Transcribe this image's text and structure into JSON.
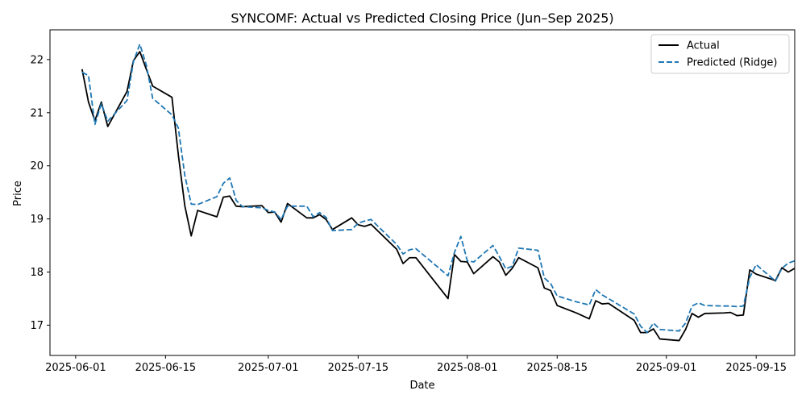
{
  "chart_data": {
    "type": "line",
    "title": "SYNCOMF: Actual vs Predicted Closing Price (Jun–Sep 2025)",
    "xlabel": "Date",
    "ylabel": "Price",
    "xlim": [
      "2025-05-28",
      "2025-09-21"
    ],
    "ylim": [
      16.43,
      22.56
    ],
    "x_ticks": [
      "2025-06-01",
      "2025-06-15",
      "2025-07-01",
      "2025-07-15",
      "2025-08-01",
      "2025-08-15",
      "2025-09-01",
      "2025-09-15"
    ],
    "y_ticks": [
      17,
      18,
      19,
      20,
      21,
      22
    ],
    "grid": false,
    "legend_position": "top-right",
    "series": [
      {
        "name": "Actual",
        "color": "#000000",
        "style": "solid",
        "points": [
          [
            "2025-06-02",
            21.82
          ],
          [
            "2025-06-03",
            21.2
          ],
          [
            "2025-06-04",
            20.85
          ],
          [
            "2025-06-05",
            21.2
          ],
          [
            "2025-06-06",
            20.74
          ],
          [
            "2025-06-09",
            21.4
          ],
          [
            "2025-06-10",
            21.98
          ],
          [
            "2025-06-11",
            22.15
          ],
          [
            "2025-06-12",
            21.82
          ],
          [
            "2025-06-13",
            21.5
          ],
          [
            "2025-06-16",
            21.29
          ],
          [
            "2025-06-17",
            20.2
          ],
          [
            "2025-06-18",
            19.25
          ],
          [
            "2025-06-19",
            18.68
          ],
          [
            "2025-06-20",
            19.16
          ],
          [
            "2025-06-23",
            19.04
          ],
          [
            "2025-06-24",
            19.41
          ],
          [
            "2025-06-25",
            19.43
          ],
          [
            "2025-06-26",
            19.24
          ],
          [
            "2025-06-27",
            19.23
          ],
          [
            "2025-06-30",
            19.25
          ],
          [
            "2025-07-01",
            19.12
          ],
          [
            "2025-07-02",
            19.13
          ],
          [
            "2025-07-03",
            18.94
          ],
          [
            "2025-07-04",
            19.29
          ],
          [
            "2025-07-07",
            19.02
          ],
          [
            "2025-07-08",
            19.02
          ],
          [
            "2025-07-09",
            19.08
          ],
          [
            "2025-07-10",
            18.99
          ],
          [
            "2025-07-11",
            18.8
          ],
          [
            "2025-07-14",
            19.02
          ],
          [
            "2025-07-15",
            18.89
          ],
          [
            "2025-07-16",
            18.86
          ],
          [
            "2025-07-17",
            18.9
          ],
          [
            "2025-07-21",
            18.43
          ],
          [
            "2025-07-22",
            18.16
          ],
          [
            "2025-07-23",
            18.27
          ],
          [
            "2025-07-24",
            18.27
          ],
          [
            "2025-07-29",
            17.5
          ],
          [
            "2025-07-30",
            18.33
          ],
          [
            "2025-07-31",
            18.2
          ],
          [
            "2025-08-01",
            18.19
          ],
          [
            "2025-08-02",
            17.97
          ],
          [
            "2025-08-05",
            18.29
          ],
          [
            "2025-08-06",
            18.19
          ],
          [
            "2025-08-07",
            17.94
          ],
          [
            "2025-08-08",
            18.07
          ],
          [
            "2025-08-09",
            18.27
          ],
          [
            "2025-08-12",
            18.08
          ],
          [
            "2025-08-13",
            17.7
          ],
          [
            "2025-08-14",
            17.65
          ],
          [
            "2025-08-15",
            17.37
          ],
          [
            "2025-08-18",
            17.23
          ],
          [
            "2025-08-20",
            17.12
          ],
          [
            "2025-08-21",
            17.46
          ],
          [
            "2025-08-22",
            17.4
          ],
          [
            "2025-08-23",
            17.41
          ],
          [
            "2025-08-27",
            17.09
          ],
          [
            "2025-08-28",
            16.86
          ],
          [
            "2025-08-29",
            16.86
          ],
          [
            "2025-08-30",
            16.93
          ],
          [
            "2025-08-31",
            16.74
          ],
          [
            "2025-09-03",
            16.71
          ],
          [
            "2025-09-04",
            16.92
          ],
          [
            "2025-09-05",
            17.22
          ],
          [
            "2025-09-06",
            17.15
          ],
          [
            "2025-09-07",
            17.22
          ],
          [
            "2025-09-10",
            17.23
          ],
          [
            "2025-09-11",
            17.24
          ],
          [
            "2025-09-12",
            17.18
          ],
          [
            "2025-09-13",
            17.19
          ],
          [
            "2025-09-14",
            18.04
          ],
          [
            "2025-09-15",
            17.96
          ],
          [
            "2025-09-18",
            17.84
          ],
          [
            "2025-09-19",
            18.08
          ],
          [
            "2025-09-20",
            18.0
          ],
          [
            "2025-09-21",
            18.07
          ]
        ]
      },
      {
        "name": "Predicted (Ridge)",
        "color": "#1f77b4",
        "style": "dashed",
        "points": [
          [
            "2025-06-02",
            21.76
          ],
          [
            "2025-06-03",
            21.7
          ],
          [
            "2025-06-04",
            20.78
          ],
          [
            "2025-06-05",
            21.17
          ],
          [
            "2025-06-06",
            20.84
          ],
          [
            "2025-06-09",
            21.23
          ],
          [
            "2025-06-10",
            21.96
          ],
          [
            "2025-06-11",
            22.29
          ],
          [
            "2025-06-12",
            21.9
          ],
          [
            "2025-06-13",
            21.27
          ],
          [
            "2025-06-16",
            20.96
          ],
          [
            "2025-06-17",
            20.71
          ],
          [
            "2025-06-18",
            19.82
          ],
          [
            "2025-06-19",
            19.28
          ],
          [
            "2025-06-20",
            19.27
          ],
          [
            "2025-06-23",
            19.42
          ],
          [
            "2025-06-24",
            19.67
          ],
          [
            "2025-06-25",
            19.77
          ],
          [
            "2025-06-26",
            19.35
          ],
          [
            "2025-06-27",
            19.23
          ],
          [
            "2025-06-30",
            19.21
          ],
          [
            "2025-07-01",
            19.16
          ],
          [
            "2025-07-02",
            19.13
          ],
          [
            "2025-07-03",
            18.99
          ],
          [
            "2025-07-04",
            19.24
          ],
          [
            "2025-07-07",
            19.24
          ],
          [
            "2025-07-08",
            19.04
          ],
          [
            "2025-07-09",
            19.12
          ],
          [
            "2025-07-10",
            19.03
          ],
          [
            "2025-07-11",
            18.78
          ],
          [
            "2025-07-14",
            18.8
          ],
          [
            "2025-07-15",
            18.92
          ],
          [
            "2025-07-16",
            18.96
          ],
          [
            "2025-07-17",
            18.99
          ],
          [
            "2025-07-21",
            18.52
          ],
          [
            "2025-07-22",
            18.34
          ],
          [
            "2025-07-23",
            18.42
          ],
          [
            "2025-07-24",
            18.44
          ],
          [
            "2025-07-29",
            17.93
          ],
          [
            "2025-07-30",
            18.37
          ],
          [
            "2025-07-31",
            18.67
          ],
          [
            "2025-08-01",
            18.21
          ],
          [
            "2025-08-02",
            18.19
          ],
          [
            "2025-08-05",
            18.5
          ],
          [
            "2025-08-06",
            18.29
          ],
          [
            "2025-08-07",
            18.06
          ],
          [
            "2025-08-08",
            18.11
          ],
          [
            "2025-08-09",
            18.45
          ],
          [
            "2025-08-12",
            18.41
          ],
          [
            "2025-08-13",
            17.89
          ],
          [
            "2025-08-14",
            17.78
          ],
          [
            "2025-08-15",
            17.55
          ],
          [
            "2025-08-18",
            17.44
          ],
          [
            "2025-08-20",
            17.38
          ],
          [
            "2025-08-21",
            17.67
          ],
          [
            "2025-08-22",
            17.57
          ],
          [
            "2025-08-23",
            17.5
          ],
          [
            "2025-08-27",
            17.21
          ],
          [
            "2025-08-28",
            16.98
          ],
          [
            "2025-08-29",
            16.86
          ],
          [
            "2025-08-30",
            17.04
          ],
          [
            "2025-08-31",
            16.92
          ],
          [
            "2025-09-03",
            16.89
          ],
          [
            "2025-09-04",
            17.04
          ],
          [
            "2025-09-05",
            17.36
          ],
          [
            "2025-09-06",
            17.42
          ],
          [
            "2025-09-07",
            17.37
          ],
          [
            "2025-09-10",
            17.36
          ],
          [
            "2025-09-11",
            17.36
          ],
          [
            "2025-09-12",
            17.35
          ],
          [
            "2025-09-13",
            17.36
          ],
          [
            "2025-09-14",
            17.9
          ],
          [
            "2025-09-15",
            18.14
          ],
          [
            "2025-09-18",
            17.83
          ],
          [
            "2025-09-19",
            18.07
          ],
          [
            "2025-09-20",
            18.17
          ],
          [
            "2025-09-21",
            18.21
          ]
        ]
      }
    ]
  }
}
